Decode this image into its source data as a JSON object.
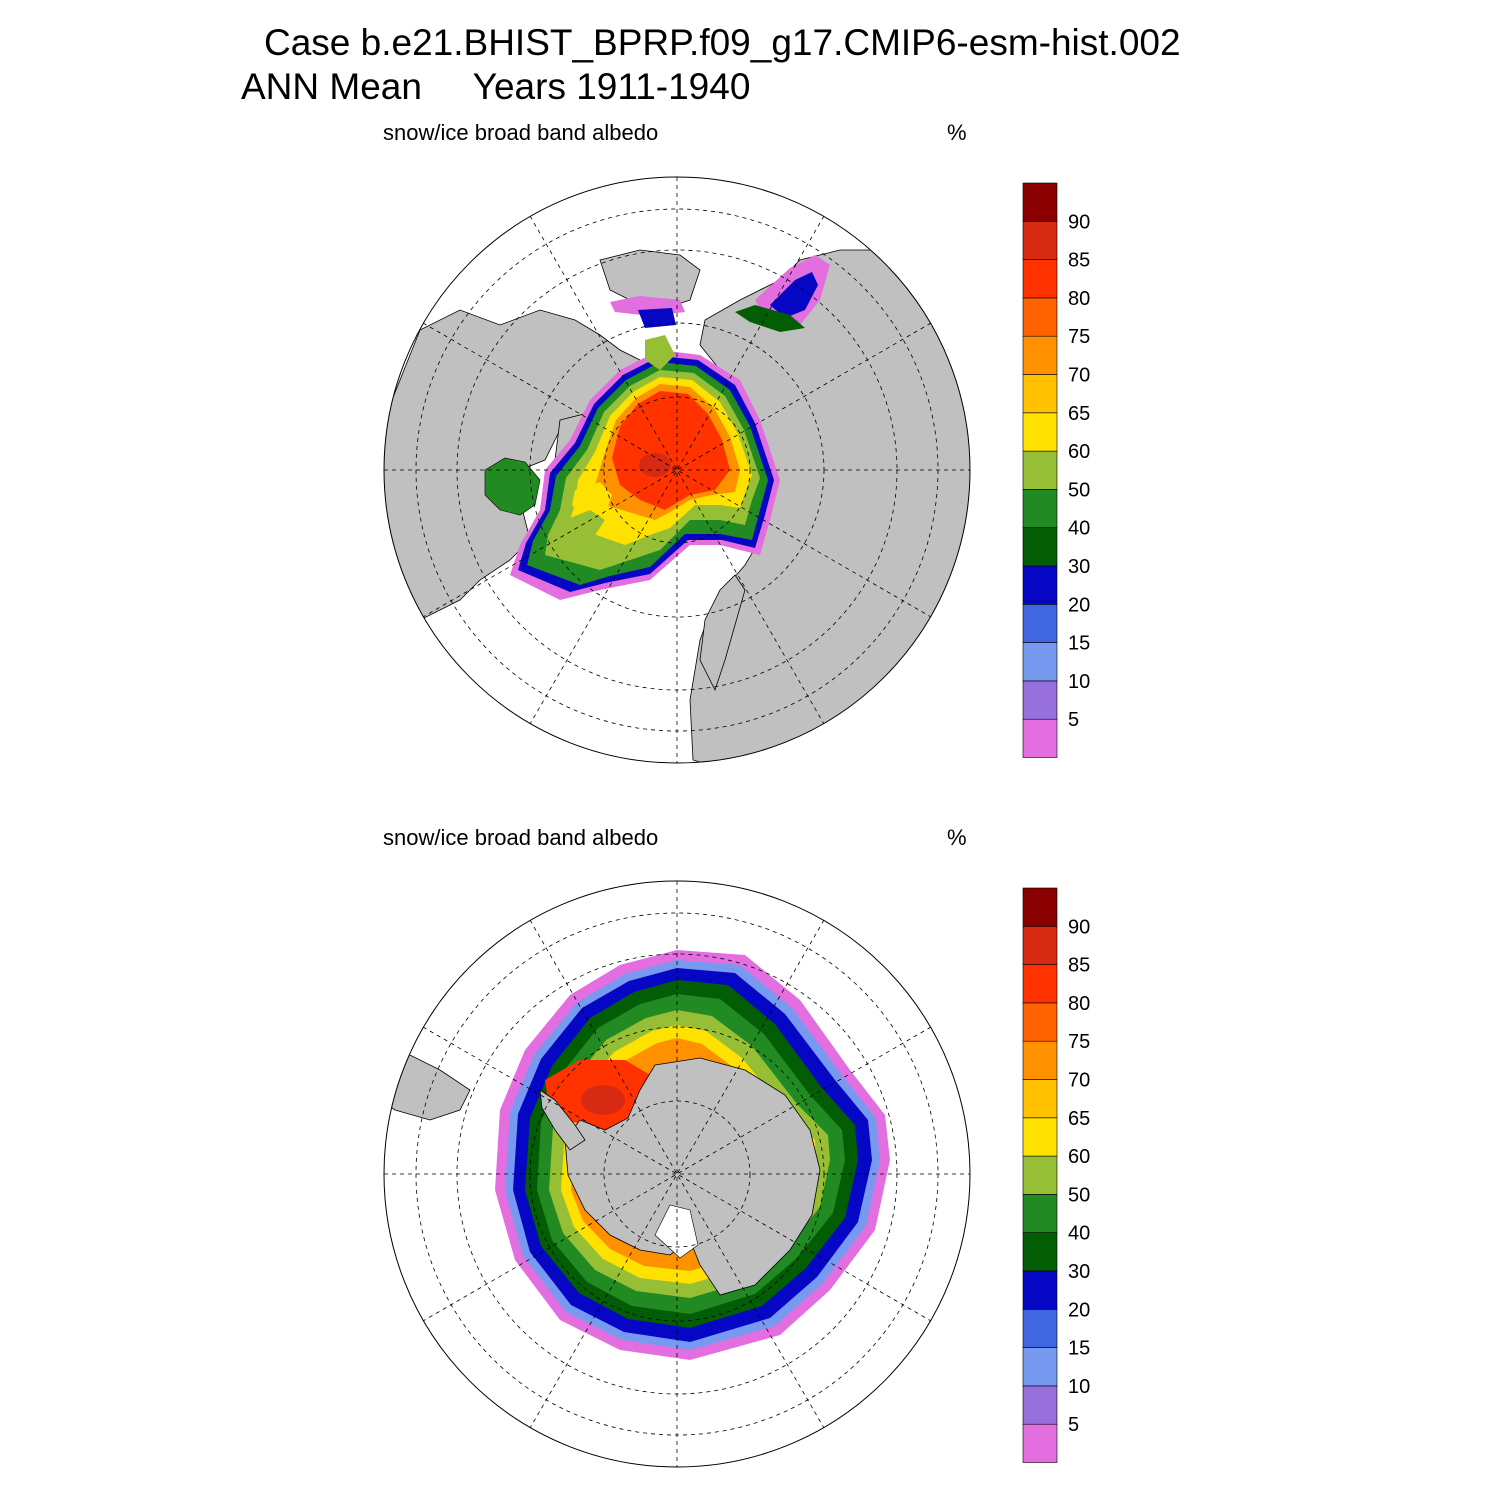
{
  "header": {
    "case_line": "Case b.e21.BHIST_BPRP.f09_g17.CMIP6-esm-hist.002",
    "period_line": "ANN Mean     Years 1911-1940"
  },
  "colors": {
    "ocean": "#ffffff",
    "land": "#c0c0c0",
    "coast": "#000000",
    "grid": "#000000",
    "levels": [
      "#e36ee0",
      "#9770dd",
      "#7899f0",
      "#4166e2",
      "#0606c5",
      "#035d05",
      "#228a22",
      "#97bf35",
      "#ffe100",
      "#ffc100",
      "#ff9100",
      "#ff6200",
      "#ff3200",
      "#d72a12",
      "#8a0000"
    ]
  },
  "colorbar": {
    "labels": [
      "5",
      "10",
      "15",
      "20",
      "30",
      "40",
      "50",
      "60",
      "65",
      "70",
      "75",
      "80",
      "85",
      "90"
    ]
  },
  "panels": [
    {
      "id": "north",
      "variable": "snow/ice broad band albedo",
      "units": "%"
    },
    {
      "id": "south",
      "variable": "snow/ice broad band albedo",
      "units": "%"
    }
  ]
}
